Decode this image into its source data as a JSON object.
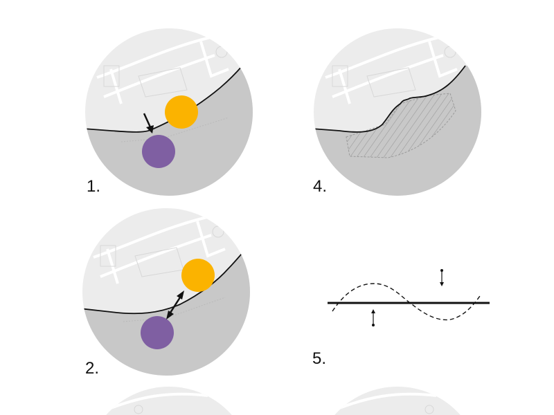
{
  "panels": [
    {
      "label": "1."
    },
    {
      "label": "4."
    },
    {
      "label": "2."
    },
    {
      "label": "5."
    }
  ],
  "colors": {
    "background": "#ffffff",
    "land": "#ececec",
    "water": "#c8c8c8",
    "shoreline": "#111111",
    "map_lines": "#ffffff",
    "hatch": "#9a9a9a",
    "yellow_circle": "#fbb300",
    "purple_circle": "#7f5fa2"
  },
  "icons": [
    "arrow-down-icon",
    "double-arrow-icon",
    "arrow-up-icon"
  ]
}
